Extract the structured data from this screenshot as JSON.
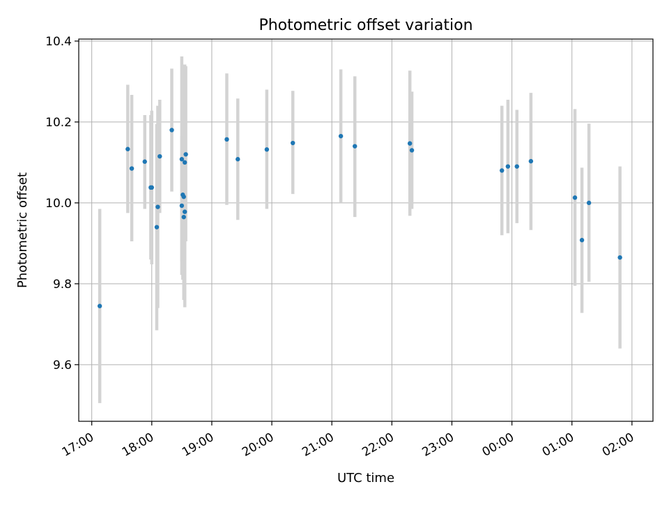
{
  "chart_data": {
    "type": "scatter",
    "title": "Photometric offset variation",
    "xlabel": "UTC time",
    "ylabel": "Photometric offset",
    "x_ticks": [
      "17:00",
      "18:00",
      "19:00",
      "20:00",
      "21:00",
      "22:00",
      "23:00",
      "00:00",
      "01:00",
      "02:00"
    ],
    "y_ticks": [
      "9.6",
      "9.8",
      "10.0",
      "10.2",
      "10.4"
    ],
    "xlim": [
      "16:47",
      "02:21"
    ],
    "ylim": [
      9.46,
      10.405
    ],
    "grid": true,
    "colors": {
      "points": "#1f77b4",
      "errorbars": "#d3d3d3",
      "grid": "#b0b0b0"
    },
    "points": [
      {
        "t": "17:08",
        "y": 9.745,
        "lo": 9.505,
        "hi": 9.985
      },
      {
        "t": "17:36",
        "y": 10.133,
        "lo": 9.975,
        "hi": 10.292
      },
      {
        "t": "17:40",
        "y": 10.085,
        "lo": 9.905,
        "hi": 10.267
      },
      {
        "t": "17:53",
        "y": 10.102,
        "lo": 9.985,
        "hi": 10.217
      },
      {
        "t": "17:59",
        "y": 10.038,
        "lo": 9.86,
        "hi": 10.217
      },
      {
        "t": "18:00",
        "y": 10.038,
        "lo": 9.848,
        "hi": 10.228
      },
      {
        "t": "18:05",
        "y": 9.94,
        "lo": 9.685,
        "hi": 10.195
      },
      {
        "t": "18:06",
        "y": 9.99,
        "lo": 9.74,
        "hi": 10.24
      },
      {
        "t": "18:08",
        "y": 10.115,
        "lo": 9.975,
        "hi": 10.255
      },
      {
        "t": "18:20",
        "y": 10.18,
        "lo": 10.028,
        "hi": 10.332
      },
      {
        "t": "18:30",
        "y": 10.108,
        "lo": 9.855,
        "hi": 10.362
      },
      {
        "t": "18:30",
        "y": 9.993,
        "lo": 9.822,
        "hi": 10.165
      },
      {
        "t": "18:31",
        "y": 10.02,
        "lo": 9.81,
        "hi": 10.23
      },
      {
        "t": "18:32",
        "y": 10.015,
        "lo": 9.845,
        "hi": 10.185
      },
      {
        "t": "18:32",
        "y": 9.965,
        "lo": 9.76,
        "hi": 10.17
      },
      {
        "t": "18:33",
        "y": 9.978,
        "lo": 9.742,
        "hi": 10.215
      },
      {
        "t": "18:33",
        "y": 10.1,
        "lo": 9.858,
        "hi": 10.342
      },
      {
        "t": "18:34",
        "y": 10.12,
        "lo": 9.905,
        "hi": 10.338
      },
      {
        "t": "19:15",
        "y": 10.157,
        "lo": 9.995,
        "hi": 10.32
      },
      {
        "t": "19:26",
        "y": 10.108,
        "lo": 9.958,
        "hi": 10.258
      },
      {
        "t": "19:55",
        "y": 10.132,
        "lo": 9.985,
        "hi": 10.28
      },
      {
        "t": "20:21",
        "y": 10.148,
        "lo": 10.022,
        "hi": 10.277
      },
      {
        "t": "21:09",
        "y": 10.165,
        "lo": 10.0,
        "hi": 10.33
      },
      {
        "t": "21:23",
        "y": 10.14,
        "lo": 9.965,
        "hi": 10.313
      },
      {
        "t": "22:18",
        "y": 10.147,
        "lo": 9.968,
        "hi": 10.327
      },
      {
        "t": "22:20",
        "y": 10.13,
        "lo": 9.985,
        "hi": 10.275
      },
      {
        "t": "23:50",
        "y": 10.08,
        "lo": 9.92,
        "hi": 10.24
      },
      {
        "t": "23:56",
        "y": 10.09,
        "lo": 9.925,
        "hi": 10.255
      },
      {
        "t": "00:05",
        "y": 10.09,
        "lo": 9.95,
        "hi": 10.23
      },
      {
        "t": "00:19",
        "y": 10.103,
        "lo": 9.933,
        "hi": 10.272
      },
      {
        "t": "01:03",
        "y": 10.013,
        "lo": 9.795,
        "hi": 10.232
      },
      {
        "t": "01:10",
        "y": 9.908,
        "lo": 9.728,
        "hi": 10.087
      },
      {
        "t": "01:17",
        "y": 10.0,
        "lo": 9.805,
        "hi": 10.196
      },
      {
        "t": "01:48",
        "y": 9.865,
        "lo": 9.64,
        "hi": 10.09
      }
    ]
  }
}
